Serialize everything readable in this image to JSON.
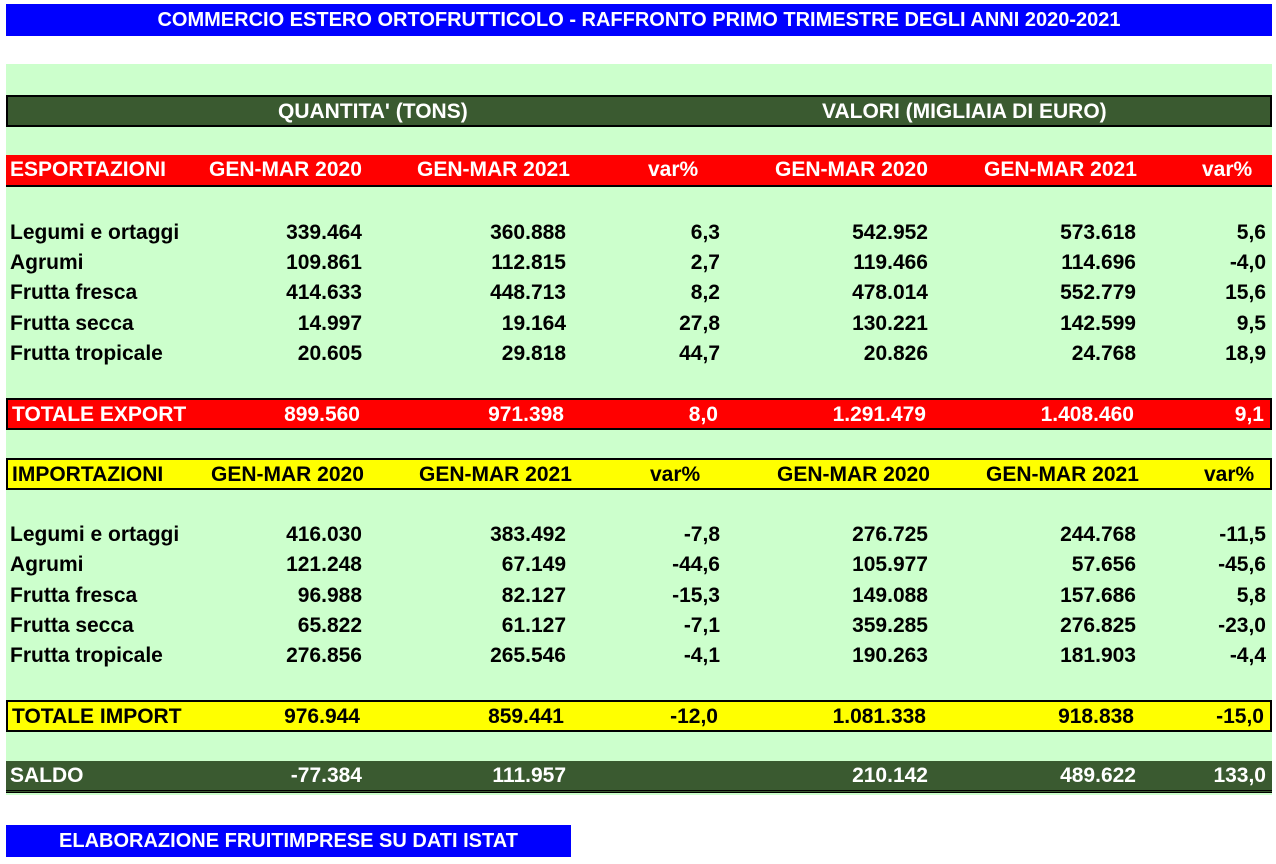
{
  "title": "COMMERCIO ESTERO ORTOFRUTTICOLO - RAFFRONTO PRIMO TRIMESTRE DEGLI ANNI 2020-2021",
  "section_headers": {
    "quantity": "QUANTITA' (TONS)",
    "values": "VALORI (MIGLIAIA DI EURO)"
  },
  "column_headers": [
    "GEN-MAR 2020",
    "GEN-MAR 2021",
    "var%",
    "GEN-MAR 2020",
    "GEN-MAR 2021",
    "var%"
  ],
  "export": {
    "label": "ESPORTAZIONI",
    "rows": [
      {
        "label": "Legumi e ortaggi",
        "values": [
          "339.464",
          "360.888",
          "6,3",
          "542.952",
          "573.618",
          "5,6"
        ]
      },
      {
        "label": "Agrumi",
        "values": [
          "109.861",
          "112.815",
          "2,7",
          "119.466",
          "114.696",
          "-4,0"
        ]
      },
      {
        "label": "Frutta fresca",
        "values": [
          "414.633",
          "448.713",
          "8,2",
          "478.014",
          "552.779",
          "15,6"
        ]
      },
      {
        "label": "Frutta secca",
        "values": [
          "14.997",
          "19.164",
          "27,8",
          "130.221",
          "142.599",
          "9,5"
        ]
      },
      {
        "label": "Frutta tropicale",
        "values": [
          "20.605",
          "29.818",
          "44,7",
          "20.826",
          "24.768",
          "18,9"
        ]
      }
    ],
    "total": {
      "label": "TOTALE EXPORT",
      "values": [
        "899.560",
        "971.398",
        "8,0",
        "1.291.479",
        "1.408.460",
        "9,1"
      ]
    }
  },
  "import": {
    "label": "IMPORTAZIONI",
    "rows": [
      {
        "label": "Legumi e ortaggi",
        "values": [
          "416.030",
          "383.492",
          "-7,8",
          "276.725",
          "244.768",
          "-11,5"
        ]
      },
      {
        "label": "Agrumi",
        "values": [
          "121.248",
          "67.149",
          "-44,6",
          "105.977",
          "57.656",
          "-45,6"
        ]
      },
      {
        "label": "Frutta fresca",
        "values": [
          "96.988",
          "82.127",
          "-15,3",
          "149.088",
          "157.686",
          "5,8"
        ]
      },
      {
        "label": "Frutta secca",
        "values": [
          "65.822",
          "61.127",
          "-7,1",
          "359.285",
          "276.825",
          "-23,0"
        ]
      },
      {
        "label": "Frutta tropicale",
        "values": [
          "276.856",
          "265.546",
          "-4,1",
          "190.263",
          "181.903",
          "-4,4"
        ]
      }
    ],
    "total": {
      "label": "TOTALE IMPORT",
      "values": [
        "976.944",
        "859.441",
        "-12,0",
        "1.081.338",
        "918.838",
        "-15,0"
      ]
    }
  },
  "saldo": {
    "label": "SALDO",
    "values": [
      "-77.384",
      "111.957",
      "",
      "210.142",
      "489.622",
      "133,0"
    ]
  },
  "footer": "ELABORAZIONE FRUITIMPRESE SU DATI ISTAT",
  "colors": {
    "title_bg": "#0000ff",
    "panel_bg": "#ccffcc",
    "header_band": "#3a5a30",
    "export_band": "#ff0000",
    "import_band": "#ffff00"
  }
}
